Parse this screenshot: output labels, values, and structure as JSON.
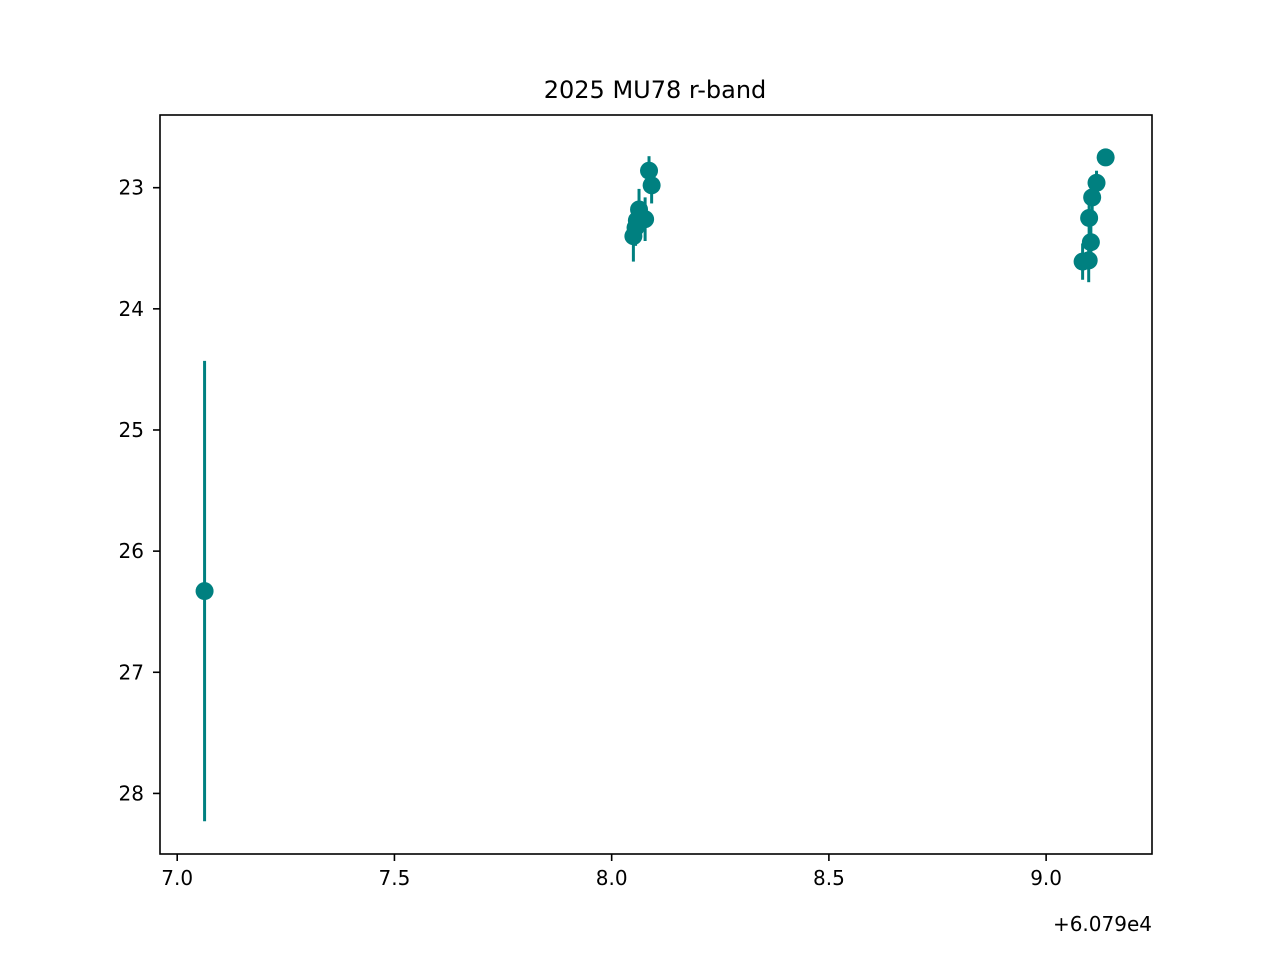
{
  "chart_data": {
    "type": "scatter",
    "title": "2025 MU78 r-band",
    "xlabel": "",
    "ylabel": "",
    "x_offset_label": "+6.079e4",
    "xlim": [
      69604.0,
      69624.0
    ],
    "ylim": [
      28.5,
      22.4
    ],
    "y_inverted": true,
    "x_ticks": [
      7.0,
      7.5,
      8.0,
      8.5,
      9.0
    ],
    "x_tick_labels": [
      "7.0",
      "7.5",
      "8.0",
      "8.5",
      "9.0"
    ],
    "y_ticks": [
      23,
      24,
      25,
      26,
      27,
      28
    ],
    "y_tick_labels": [
      "23",
      "24",
      "25",
      "26",
      "27",
      "28"
    ],
    "grid": false,
    "color": "#008080",
    "points": [
      {
        "x": 7.063,
        "y": 26.33,
        "yerr": 1.9
      },
      {
        "x": 8.05,
        "y": 23.4,
        "yerr": 0.21
      },
      {
        "x": 8.055,
        "y": 23.33,
        "yerr": 0.15
      },
      {
        "x": 8.058,
        "y": 23.27,
        "yerr": 0.13
      },
      {
        "x": 8.063,
        "y": 23.18,
        "yerr": 0.17
      },
      {
        "x": 8.077,
        "y": 23.26,
        "yerr": 0.18
      },
      {
        "x": 8.086,
        "y": 22.86,
        "yerr": 0.12
      },
      {
        "x": 8.092,
        "y": 22.98,
        "yerr": 0.15
      },
      {
        "x": 9.084,
        "y": 23.61,
        "yerr": 0.15
      },
      {
        "x": 9.098,
        "y": 23.6,
        "yerr": 0.18
      },
      {
        "x": 9.099,
        "y": 23.25,
        "yerr": 0.15
      },
      {
        "x": 9.103,
        "y": 23.45,
        "yerr": 0.14
      },
      {
        "x": 9.106,
        "y": 23.08,
        "yerr": 0.12
      },
      {
        "x": 9.116,
        "y": 22.96,
        "yerr": 0.1
      },
      {
        "x": 9.137,
        "y": 22.75,
        "yerr": 0.04
      }
    ]
  }
}
